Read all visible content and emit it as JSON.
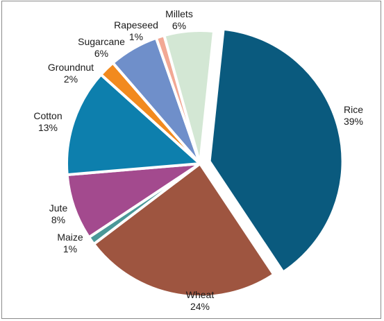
{
  "chart_data": {
    "type": "pie",
    "title": "",
    "slices": [
      {
        "label": "Rice",
        "value": 39,
        "display": "39%",
        "color": "#0a5a7e",
        "exploded": true
      },
      {
        "label": "Wheat",
        "value": 24,
        "display": "24%",
        "color": "#9e5540",
        "exploded": false
      },
      {
        "label": "Maize",
        "value": 1,
        "display": "1%",
        "color": "#4a9898",
        "exploded": false
      },
      {
        "label": "Jute",
        "value": 8,
        "display": "8%",
        "color": "#a34a8e",
        "exploded": false
      },
      {
        "label": "Cotton",
        "value": 13,
        "display": "13%",
        "color": "#0d7fad",
        "exploded": false
      },
      {
        "label": "Groundnut",
        "value": 2,
        "display": "2%",
        "color": "#f28a1e",
        "exploded": false
      },
      {
        "label": "Sugarcane",
        "value": 6,
        "display": "6%",
        "color": "#6f8fca",
        "exploded": false
      },
      {
        "label": "Rapeseed",
        "value": 1,
        "display": "1%",
        "color": "#f2a894",
        "exploded": false
      },
      {
        "label": "Millets",
        "value": 6,
        "display": "6%",
        "color": "#d3e7d4",
        "exploded": false
      }
    ]
  }
}
